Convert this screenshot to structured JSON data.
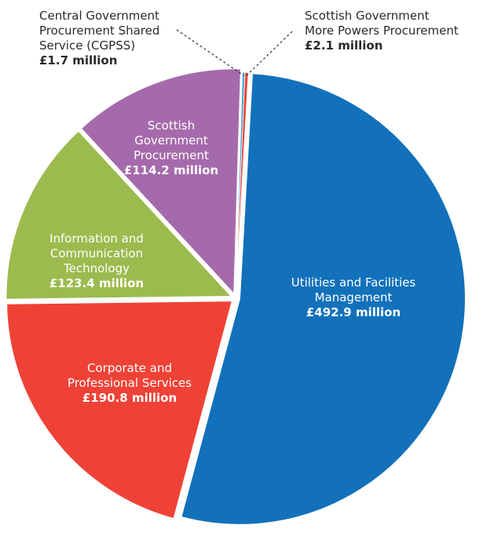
{
  "chart_data": {
    "type": "pie",
    "currency": "£",
    "unit": "million",
    "slices": [
      {
        "name": "Utilities and Facilities Management",
        "value": 492.9,
        "value_label": "£492.9 million",
        "color": "#1271BA",
        "label_lines": [
          "Utilities and Facilities",
          "Management"
        ]
      },
      {
        "name": "Corporate and Professional Services",
        "value": 190.8,
        "value_label": "£190.8 million",
        "color": "#EF4237",
        "label_lines": [
          "Corporate and",
          "Professional Services"
        ]
      },
      {
        "name": "Information and Communication Technology",
        "value": 123.4,
        "value_label": "£123.4 million",
        "color": "#9CBB4E",
        "label_lines": [
          "Information and",
          "Communication",
          "Technology"
        ]
      },
      {
        "name": "Scottish Government Procurement",
        "value": 114.2,
        "value_label": "£114.2 million",
        "color": "#A56AAB",
        "label_lines": [
          "Scottish",
          "Government",
          "Procurement"
        ]
      },
      {
        "name": "Central Government Procurement Shared Service (CGPSS)",
        "value": 1.7,
        "value_label": "£1.7 million",
        "color": "#4FA3D6",
        "label_lines": [
          "Central Government",
          "Procurement Shared",
          "Service (CGPSS)"
        ]
      },
      {
        "name": "Scottish Government More Powers Procurement",
        "value": 2.1,
        "value_label": "£2.1 million",
        "color": "#EF4237",
        "label_lines": [
          "Scottish Government",
          "More Powers Procurement"
        ]
      }
    ]
  }
}
